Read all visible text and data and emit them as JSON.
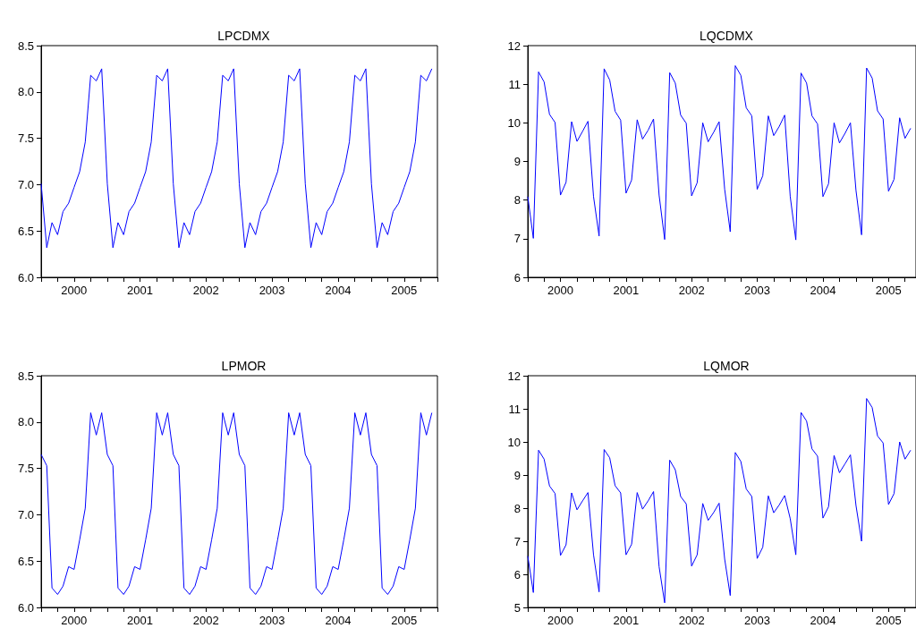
{
  "chart_data": [
    {
      "type": "line",
      "title": "LPCDMX",
      "marker": "none",
      "x": [
        "2000-01",
        "2000-02",
        "2000-03",
        "2000-04",
        "2000-05",
        "2000-06",
        "2000-07",
        "2000-08",
        "2000-09",
        "2000-10",
        "2000-11",
        "2000-12",
        "2001-01",
        "2001-02",
        "2001-03",
        "2001-04",
        "2001-05",
        "2001-06",
        "2001-07",
        "2001-08",
        "2001-09",
        "2001-10",
        "2001-11",
        "2001-12",
        "2002-01",
        "2002-02",
        "2002-03",
        "2002-04",
        "2002-05",
        "2002-06",
        "2002-07",
        "2002-08",
        "2002-09",
        "2002-10",
        "2002-11",
        "2002-12",
        "2003-01",
        "2003-02",
        "2003-03",
        "2003-04",
        "2003-05",
        "2003-06",
        "2003-07",
        "2003-08",
        "2003-09",
        "2003-10",
        "2003-11",
        "2003-12",
        "2004-01",
        "2004-02",
        "2004-03",
        "2004-04",
        "2004-05",
        "2004-06",
        "2004-07",
        "2004-08",
        "2004-09",
        "2004-10",
        "2004-11",
        "2004-12",
        "2005-01",
        "2005-02",
        "2005-03",
        "2005-04",
        "2005-05",
        "2005-06",
        "2005-07",
        "2005-08",
        "2005-09",
        "2005-10",
        "2005-11",
        "2005-12"
      ],
      "series": [
        {
          "color": "#0000ff",
          "values": [
            7.01,
            6.32,
            6.59,
            6.46,
            6.71,
            6.8,
            6.97,
            7.14,
            7.46,
            8.18,
            8.12,
            8.25,
            7.01,
            6.32,
            6.59,
            6.46,
            6.71,
            6.8,
            6.97,
            7.14,
            7.46,
            8.18,
            8.12,
            8.25,
            7.01,
            6.32,
            6.59,
            6.46,
            6.71,
            6.8,
            6.97,
            7.14,
            7.46,
            8.18,
            8.12,
            8.25,
            7.01,
            6.32,
            6.59,
            6.46,
            6.71,
            6.8,
            6.97,
            7.14,
            7.46,
            8.18,
            8.12,
            8.25,
            7.01,
            6.32,
            6.59,
            6.46,
            6.71,
            6.8,
            6.97,
            7.14,
            7.46,
            8.18,
            8.12,
            8.25,
            7.01,
            6.32,
            6.59,
            6.46,
            6.71,
            6.8,
            6.97,
            7.14,
            7.46,
            8.18,
            8.12,
            8.25
          ]
        }
      ],
      "xlim": [
        "2000-01",
        "2006-01"
      ],
      "xticks": [
        {
          "value": "2000-01",
          "label": null
        },
        {
          "value": "2000-04",
          "label": null
        },
        {
          "value": "2000-07",
          "label": "2000"
        },
        {
          "value": "2000-10",
          "label": null
        },
        {
          "value": "2001-01",
          "label": null
        },
        {
          "value": "2001-04",
          "label": null
        },
        {
          "value": "2001-07",
          "label": "2001"
        },
        {
          "value": "2001-10",
          "label": null
        },
        {
          "value": "2002-01",
          "label": null
        },
        {
          "value": "2002-04",
          "label": null
        },
        {
          "value": "2002-07",
          "label": "2002"
        },
        {
          "value": "2002-10",
          "label": null
        },
        {
          "value": "2003-01",
          "label": null
        },
        {
          "value": "2003-04",
          "label": null
        },
        {
          "value": "2003-07",
          "label": "2003"
        },
        {
          "value": "2003-10",
          "label": null
        },
        {
          "value": "2004-01",
          "label": null
        },
        {
          "value": "2004-04",
          "label": null
        },
        {
          "value": "2004-07",
          "label": "2004"
        },
        {
          "value": "2004-10",
          "label": null
        },
        {
          "value": "2005-01",
          "label": null
        },
        {
          "value": "2005-04",
          "label": null
        },
        {
          "value": "2005-07",
          "label": "2005"
        },
        {
          "value": "2005-10",
          "label": null
        },
        {
          "value": "2006-01",
          "label": null
        }
      ],
      "ylim": [
        6,
        8.5
      ],
      "yticks": [
        {
          "value": 6,
          "label": "6.0"
        },
        {
          "value": 6.5,
          "label": "6.5"
        },
        {
          "value": 7,
          "label": "7.0"
        },
        {
          "value": 7.5,
          "label": "7.5"
        },
        {
          "value": 8,
          "label": "8.0"
        },
        {
          "value": 8.5,
          "label": "8.5"
        }
      ]
    },
    {
      "type": "line",
      "title": "LQCDMX",
      "marker": "none",
      "x": [
        "2000-01",
        "2000-02",
        "2000-03",
        "2000-04",
        "2000-05",
        "2000-06",
        "2000-07",
        "2000-08",
        "2000-09",
        "2000-10",
        "2000-11",
        "2000-12",
        "2001-01",
        "2001-02",
        "2001-03",
        "2001-04",
        "2001-05",
        "2001-06",
        "2001-07",
        "2001-08",
        "2001-09",
        "2001-10",
        "2001-11",
        "2001-12",
        "2002-01",
        "2002-02",
        "2002-03",
        "2002-04",
        "2002-05",
        "2002-06",
        "2002-07",
        "2002-08",
        "2002-09",
        "2002-10",
        "2002-11",
        "2002-12",
        "2003-01",
        "2003-02",
        "2003-03",
        "2003-04",
        "2003-05",
        "2003-06",
        "2003-07",
        "2003-08",
        "2003-09",
        "2003-10",
        "2003-11",
        "2003-12",
        "2004-01",
        "2004-02",
        "2004-03",
        "2004-04",
        "2004-05",
        "2004-06",
        "2004-07",
        "2004-08",
        "2004-09",
        "2004-10",
        "2004-11",
        "2004-12",
        "2005-01",
        "2005-02",
        "2005-03",
        "2005-04",
        "2005-05",
        "2005-06",
        "2005-07",
        "2005-08",
        "2005-09",
        "2005-10",
        "2005-11"
      ],
      "series": [
        {
          "color": "#0000ff",
          "values": [
            8.09,
            7.01,
            11.32,
            11.06,
            10.22,
            10.01,
            8.13,
            8.46,
            10.03,
            9.52,
            9.78,
            10.04,
            8.09,
            7.07,
            11.4,
            11.11,
            10.3,
            10.07,
            8.18,
            8.52,
            10.08,
            9.58,
            9.81,
            10.1,
            8.13,
            6.98,
            11.3,
            11.03,
            10.2,
            9.99,
            8.11,
            8.45,
            10.0,
            9.51,
            9.76,
            10.03,
            8.28,
            7.18,
            11.48,
            11.23,
            10.39,
            10.18,
            8.28,
            8.63,
            10.18,
            9.67,
            9.91,
            10.2,
            8.09,
            6.97,
            11.29,
            11.03,
            10.18,
            9.97,
            8.09,
            8.42,
            10.0,
            9.48,
            9.73,
            10.0,
            8.25,
            7.1,
            11.42,
            11.16,
            10.31,
            10.1,
            8.23,
            8.54,
            10.13,
            9.6,
            9.86
          ]
        }
      ],
      "xlim": [
        "2000-01",
        "2005-12"
      ],
      "xticks": [
        {
          "value": "2000-01",
          "label": null
        },
        {
          "value": "2000-04",
          "label": null
        },
        {
          "value": "2000-07",
          "label": "2000"
        },
        {
          "value": "2000-10",
          "label": null
        },
        {
          "value": "2001-01",
          "label": null
        },
        {
          "value": "2001-04",
          "label": null
        },
        {
          "value": "2001-07",
          "label": "2001"
        },
        {
          "value": "2001-10",
          "label": null
        },
        {
          "value": "2002-01",
          "label": null
        },
        {
          "value": "2002-04",
          "label": null
        },
        {
          "value": "2002-07",
          "label": "2002"
        },
        {
          "value": "2002-10",
          "label": null
        },
        {
          "value": "2003-01",
          "label": null
        },
        {
          "value": "2003-04",
          "label": null
        },
        {
          "value": "2003-07",
          "label": "2003"
        },
        {
          "value": "2003-10",
          "label": null
        },
        {
          "value": "2004-01",
          "label": null
        },
        {
          "value": "2004-04",
          "label": null
        },
        {
          "value": "2004-07",
          "label": "2004"
        },
        {
          "value": "2004-10",
          "label": null
        },
        {
          "value": "2005-01",
          "label": null
        },
        {
          "value": "2005-04",
          "label": null
        },
        {
          "value": "2005-07",
          "label": "2005"
        },
        {
          "value": "2005-10",
          "label": null
        }
      ],
      "ylim": [
        6,
        12
      ],
      "yticks": [
        6,
        7,
        8,
        9,
        10,
        11,
        12
      ]
    },
    {
      "type": "line",
      "title": "LPMOR",
      "marker": "none",
      "x": [
        "2000-01",
        "2000-02",
        "2000-03",
        "2000-04",
        "2000-05",
        "2000-06",
        "2000-07",
        "2000-08",
        "2000-09",
        "2000-10",
        "2000-11",
        "2000-12",
        "2001-01",
        "2001-02",
        "2001-03",
        "2001-04",
        "2001-05",
        "2001-06",
        "2001-07",
        "2001-08",
        "2001-09",
        "2001-10",
        "2001-11",
        "2001-12",
        "2002-01",
        "2002-02",
        "2002-03",
        "2002-04",
        "2002-05",
        "2002-06",
        "2002-07",
        "2002-08",
        "2002-09",
        "2002-10",
        "2002-11",
        "2002-12",
        "2003-01",
        "2003-02",
        "2003-03",
        "2003-04",
        "2003-05",
        "2003-06",
        "2003-07",
        "2003-08",
        "2003-09",
        "2003-10",
        "2003-11",
        "2003-12",
        "2004-01",
        "2004-02",
        "2004-03",
        "2004-04",
        "2004-05",
        "2004-06",
        "2004-07",
        "2004-08",
        "2004-09",
        "2004-10",
        "2004-11",
        "2004-12",
        "2005-01",
        "2005-02",
        "2005-03",
        "2005-04",
        "2005-05",
        "2005-06",
        "2005-07",
        "2005-08",
        "2005-09",
        "2005-10",
        "2005-11",
        "2005-12"
      ],
      "series": [
        {
          "color": "#0000ff",
          "values": [
            7.65,
            7.53,
            6.21,
            6.14,
            6.23,
            6.44,
            6.41,
            6.73,
            7.07,
            8.1,
            7.86,
            8.1,
            7.65,
            7.53,
            6.21,
            6.14,
            6.23,
            6.44,
            6.41,
            6.73,
            7.07,
            8.1,
            7.86,
            8.1,
            7.65,
            7.53,
            6.21,
            6.14,
            6.23,
            6.44,
            6.41,
            6.73,
            7.07,
            8.1,
            7.86,
            8.1,
            7.65,
            7.53,
            6.21,
            6.14,
            6.23,
            6.44,
            6.41,
            6.73,
            7.07,
            8.1,
            7.86,
            8.1,
            7.65,
            7.53,
            6.21,
            6.14,
            6.23,
            6.44,
            6.41,
            6.73,
            7.07,
            8.1,
            7.86,
            8.1,
            7.65,
            7.53,
            6.21,
            6.14,
            6.23,
            6.44,
            6.41,
            6.73,
            7.07,
            8.1,
            7.86,
            8.1
          ]
        }
      ],
      "xlim": [
        "2000-01",
        "2006-01"
      ],
      "xticks": [
        {
          "value": "2000-01",
          "label": null
        },
        {
          "value": "2000-04",
          "label": null
        },
        {
          "value": "2000-07",
          "label": "2000"
        },
        {
          "value": "2000-10",
          "label": null
        },
        {
          "value": "2001-01",
          "label": null
        },
        {
          "value": "2001-04",
          "label": null
        },
        {
          "value": "2001-07",
          "label": "2001"
        },
        {
          "value": "2001-10",
          "label": null
        },
        {
          "value": "2002-01",
          "label": null
        },
        {
          "value": "2002-04",
          "label": null
        },
        {
          "value": "2002-07",
          "label": "2002"
        },
        {
          "value": "2002-10",
          "label": null
        },
        {
          "value": "2003-01",
          "label": null
        },
        {
          "value": "2003-04",
          "label": null
        },
        {
          "value": "2003-07",
          "label": "2003"
        },
        {
          "value": "2003-10",
          "label": null
        },
        {
          "value": "2004-01",
          "label": null
        },
        {
          "value": "2004-04",
          "label": null
        },
        {
          "value": "2004-07",
          "label": "2004"
        },
        {
          "value": "2004-10",
          "label": null
        },
        {
          "value": "2005-01",
          "label": null
        },
        {
          "value": "2005-04",
          "label": null
        },
        {
          "value": "2005-07",
          "label": "2005"
        },
        {
          "value": "2005-10",
          "label": null
        },
        {
          "value": "2006-01",
          "label": null
        }
      ],
      "ylim": [
        6,
        8.5
      ],
      "yticks": [
        {
          "value": 6,
          "label": "6.0"
        },
        {
          "value": 6.5,
          "label": "6.5"
        },
        {
          "value": 7,
          "label": "7.0"
        },
        {
          "value": 7.5,
          "label": "7.5"
        },
        {
          "value": 8,
          "label": "8.0"
        },
        {
          "value": 8.5,
          "label": "8.5"
        }
      ]
    },
    {
      "type": "line",
      "title": "LQMOR",
      "marker": "none",
      "x": [
        "2000-01",
        "2000-02",
        "2000-03",
        "2000-04",
        "2000-05",
        "2000-06",
        "2000-07",
        "2000-08",
        "2000-09",
        "2000-10",
        "2000-11",
        "2000-12",
        "2001-01",
        "2001-02",
        "2001-03",
        "2001-04",
        "2001-05",
        "2001-06",
        "2001-07",
        "2001-08",
        "2001-09",
        "2001-10",
        "2001-11",
        "2001-12",
        "2002-01",
        "2002-02",
        "2002-03",
        "2002-04",
        "2002-05",
        "2002-06",
        "2002-07",
        "2002-08",
        "2002-09",
        "2002-10",
        "2002-11",
        "2002-12",
        "2003-01",
        "2003-02",
        "2003-03",
        "2003-04",
        "2003-05",
        "2003-06",
        "2003-07",
        "2003-08",
        "2003-09",
        "2003-10",
        "2003-11",
        "2003-12",
        "2004-01",
        "2004-02",
        "2004-03",
        "2004-04",
        "2004-05",
        "2004-06",
        "2004-07",
        "2004-08",
        "2004-09",
        "2004-10",
        "2004-11",
        "2004-12",
        "2005-01",
        "2005-02",
        "2005-03",
        "2005-04",
        "2005-05",
        "2005-06",
        "2005-07",
        "2005-08",
        "2005-09",
        "2005-10",
        "2005-11"
      ],
      "series": [
        {
          "color": "#0000ff",
          "values": [
            6.55,
            5.45,
            9.75,
            9.48,
            8.67,
            8.44,
            6.57,
            6.89,
            8.46,
            7.95,
            8.22,
            8.47,
            6.59,
            5.47,
            9.77,
            9.52,
            8.68,
            8.46,
            6.59,
            6.91,
            8.47,
            7.97,
            8.22,
            8.5,
            6.23,
            5.14,
            9.45,
            9.16,
            8.35,
            8.13,
            6.25,
            6.59,
            8.14,
            7.63,
            7.87,
            8.15,
            6.46,
            5.36,
            9.68,
            9.41,
            8.58,
            8.35,
            6.48,
            6.82,
            8.37,
            7.86,
            8.1,
            8.38,
            7.68,
            6.59,
            10.89,
            10.63,
            9.79,
            9.57,
            7.7,
            8.04,
            9.59,
            9.07,
            9.34,
            9.61,
            8.08,
            7.0,
            11.31,
            11.04,
            10.18,
            9.97,
            8.11,
            8.44,
            10.0,
            9.48,
            9.75
          ]
        }
      ],
      "xlim": [
        "2000-01",
        "2005-12"
      ],
      "xticks": [
        {
          "value": "2000-01",
          "label": null
        },
        {
          "value": "2000-04",
          "label": null
        },
        {
          "value": "2000-07",
          "label": "2000"
        },
        {
          "value": "2000-10",
          "label": null
        },
        {
          "value": "2001-01",
          "label": null
        },
        {
          "value": "2001-04",
          "label": null
        },
        {
          "value": "2001-07",
          "label": "2001"
        },
        {
          "value": "2001-10",
          "label": null
        },
        {
          "value": "2002-01",
          "label": null
        },
        {
          "value": "2002-04",
          "label": null
        },
        {
          "value": "2002-07",
          "label": "2002"
        },
        {
          "value": "2002-10",
          "label": null
        },
        {
          "value": "2003-01",
          "label": null
        },
        {
          "value": "2003-04",
          "label": null
        },
        {
          "value": "2003-07",
          "label": "2003"
        },
        {
          "value": "2003-10",
          "label": null
        },
        {
          "value": "2004-01",
          "label": null
        },
        {
          "value": "2004-04",
          "label": null
        },
        {
          "value": "2004-07",
          "label": "2004"
        },
        {
          "value": "2004-10",
          "label": null
        },
        {
          "value": "2005-01",
          "label": null
        },
        {
          "value": "2005-04",
          "label": null
        },
        {
          "value": "2005-07",
          "label": "2005"
        },
        {
          "value": "2005-10",
          "label": null
        }
      ],
      "ylim": [
        5,
        12
      ],
      "yticks": [
        5,
        6,
        7,
        8,
        9,
        10,
        11,
        12
      ]
    }
  ]
}
